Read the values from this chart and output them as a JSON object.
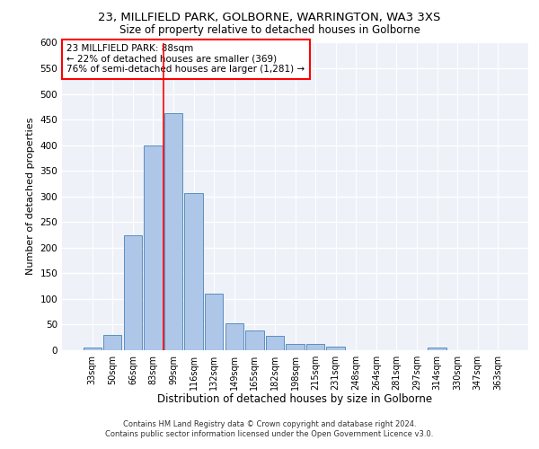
{
  "title1": "23, MILLFIELD PARK, GOLBORNE, WARRINGTON, WA3 3XS",
  "title2": "Size of property relative to detached houses in Golborne",
  "xlabel": "Distribution of detached houses by size in Golborne",
  "ylabel": "Number of detached properties",
  "categories": [
    "33sqm",
    "50sqm",
    "66sqm",
    "83sqm",
    "99sqm",
    "116sqm",
    "132sqm",
    "149sqm",
    "165sqm",
    "182sqm",
    "198sqm",
    "215sqm",
    "231sqm",
    "248sqm",
    "264sqm",
    "281sqm",
    "297sqm",
    "314sqm",
    "330sqm",
    "347sqm",
    "363sqm"
  ],
  "values": [
    5,
    30,
    225,
    400,
    462,
    307,
    110,
    53,
    38,
    28,
    13,
    12,
    7,
    0,
    0,
    0,
    0,
    5,
    0,
    0,
    0
  ],
  "bar_color": "#aec6e8",
  "bar_edge_color": "#5a8fc0",
  "property_line_x": 3.5,
  "property_line_color": "red",
  "annotation_text": "23 MILLFIELD PARK: 88sqm\n← 22% of detached houses are smaller (369)\n76% of semi-detached houses are larger (1,281) →",
  "annotation_box_color": "white",
  "annotation_box_edge": "red",
  "ylim": [
    0,
    600
  ],
  "yticks": [
    0,
    50,
    100,
    150,
    200,
    250,
    300,
    350,
    400,
    450,
    500,
    550,
    600
  ],
  "footer1": "Contains HM Land Registry data © Crown copyright and database right 2024.",
  "footer2": "Contains public sector information licensed under the Open Government Licence v3.0.",
  "bg_color": "#eef2f8",
  "grid_color": "white"
}
